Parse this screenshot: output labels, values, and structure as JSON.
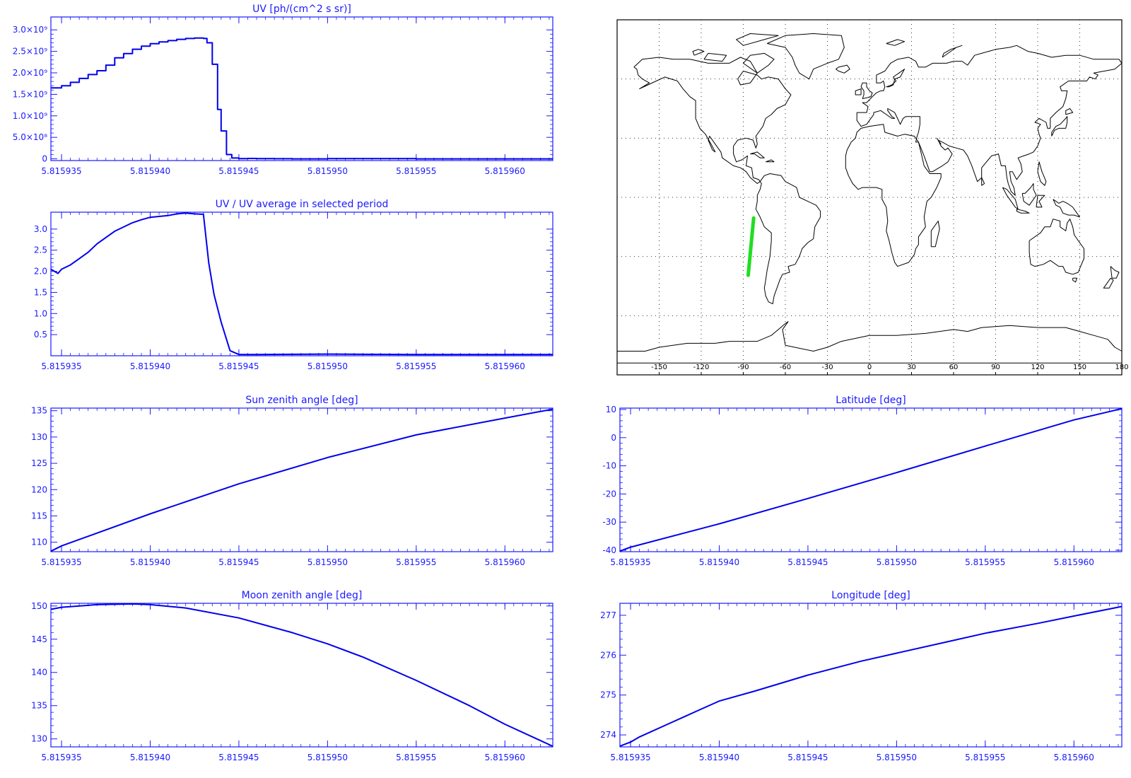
{
  "colors": {
    "axis": "#1a1aff",
    "line": "#0000ee",
    "track": "#22dd22",
    "coast": "#000000",
    "grid": "#333333",
    "map_frame": "#000000"
  },
  "x_ticks": [
    "5.815935",
    "5.815940",
    "5.815945",
    "5.815950",
    "5.815955",
    "5.815960"
  ],
  "map": {
    "lon_ticks": [
      "-150",
      "-120",
      "-90",
      "-60",
      "-30",
      "0",
      "30",
      "60",
      "90",
      "120",
      "150",
      "180"
    ],
    "track": [
      [
        -82.6,
        -10.5
      ],
      [
        -86.5,
        -39.5
      ]
    ]
  },
  "chart_data": [
    {
      "id": "uv",
      "type": "line",
      "step": true,
      "title": "UV [ph/(cm^2 s sr)]",
      "xlabel": "",
      "ylabel": "",
      "xlim": [
        5.8159344,
        5.8159627
      ],
      "ylim": [
        -40000000,
        3300000000
      ],
      "y_ticks": [
        0,
        500000000,
        1000000000,
        1500000000,
        2000000000,
        2500000000,
        3000000000
      ],
      "y_tick_labels": [
        "0",
        "5.0×10⁸",
        "1.0×10⁹",
        "1.5×10⁹",
        "2.0×10⁹",
        "2.5×10⁹",
        "3.0×10⁹"
      ],
      "series": [
        {
          "x": [
            5.8159344,
            5.815935,
            5.8159355,
            5.815936,
            5.8159365,
            5.815937,
            5.8159375,
            5.815938,
            5.8159385,
            5.815939,
            5.8159395,
            5.81594,
            5.8159405,
            5.815941,
            5.8159415,
            5.815942,
            5.8159425,
            5.815943,
            5.8159432,
            5.8159435,
            5.8159438,
            5.815944,
            5.8159443,
            5.8159446,
            5.815945,
            5.8159455,
            5.815946,
            5.815947,
            5.815948,
            5.81595,
            5.815955,
            5.81596,
            5.8159627
          ],
          "y": [
            1650000000,
            1700000000,
            1780000000,
            1870000000,
            1960000000,
            2050000000,
            2180000000,
            2350000000,
            2450000000,
            2550000000,
            2620000000,
            2680000000,
            2720000000,
            2750000000,
            2780000000,
            2800000000,
            2810000000,
            2800000000,
            2700000000,
            2200000000,
            1150000000,
            650000000,
            100000000,
            20000000,
            5000000,
            10000000,
            5000000,
            2000000,
            0,
            5000000,
            0,
            0,
            0
          ]
        }
      ]
    },
    {
      "id": "uv-ratio",
      "type": "line",
      "title": "UV / UV average in selected period",
      "xlabel": "",
      "ylabel": "",
      "xlim": [
        5.8159344,
        5.8159627
      ],
      "ylim": [
        0,
        3.4
      ],
      "y_ticks": [
        0.5,
        1.0,
        1.5,
        2.0,
        2.5,
        3.0
      ],
      "y_tick_labels": [
        "0.5",
        "1.0",
        "1.5",
        "2.0",
        "2.5",
        "3.0"
      ],
      "series": [
        {
          "x": [
            5.8159344,
            5.8159348,
            5.815935,
            5.8159355,
            5.815936,
            5.8159365,
            5.815937,
            5.8159375,
            5.815938,
            5.8159385,
            5.815939,
            5.8159395,
            5.81594,
            5.8159405,
            5.815941,
            5.8159415,
            5.815942,
            5.8159425,
            5.815943,
            5.8159433,
            5.8159436,
            5.815944,
            5.8159445,
            5.815945,
            5.815946,
            5.81595,
            5.815955,
            5.81596,
            5.8159627
          ],
          "y": [
            2.05,
            1.95,
            2.05,
            2.15,
            2.3,
            2.45,
            2.65,
            2.8,
            2.95,
            3.05,
            3.15,
            3.22,
            3.28,
            3.3,
            3.32,
            3.36,
            3.38,
            3.36,
            3.35,
            2.2,
            1.45,
            0.8,
            0.12,
            0.03,
            0.03,
            0.04,
            0.03,
            0.03,
            0.03
          ]
        }
      ]
    },
    {
      "id": "sun-zenith",
      "type": "line",
      "title": "Sun zenith angle [deg]",
      "xlabel": "",
      "ylabel": "",
      "xlim": [
        5.8159344,
        5.8159627
      ],
      "ylim": [
        108.2,
        135.5
      ],
      "y_ticks": [
        110,
        115,
        120,
        125,
        130,
        135
      ],
      "y_tick_labels": [
        "110",
        "115",
        "120",
        "125",
        "130",
        "135"
      ],
      "series": [
        {
          "x": [
            5.8159344,
            5.815935,
            5.81594,
            5.815945,
            5.81595,
            5.815955,
            5.81596,
            5.8159627
          ],
          "y": [
            108.3,
            109.3,
            115.4,
            121.1,
            126.1,
            130.4,
            133.6,
            135.3
          ]
        }
      ]
    },
    {
      "id": "latitude",
      "type": "line",
      "title": "Latitude [deg]",
      "xlabel": "",
      "ylabel": "",
      "xlim": [
        5.8159344,
        5.8159627
      ],
      "ylim": [
        -40.5,
        10.5
      ],
      "y_ticks": [
        -40,
        -30,
        -20,
        -10,
        0,
        10
      ],
      "y_tick_labels": [
        "-40",
        "-30",
        "-20",
        "-10",
        "0",
        "10"
      ],
      "series": [
        {
          "x": [
            5.8159344,
            5.815935,
            5.81594,
            5.815945,
            5.81595,
            5.815955,
            5.81596,
            5.8159627
          ],
          "y": [
            -40.3,
            -38.9,
            -30.6,
            -21.6,
            -12.4,
            -3.0,
            6.3,
            10.3
          ]
        }
      ]
    },
    {
      "id": "moon-zenith",
      "type": "line",
      "title": "Moon zenith angle [deg]",
      "xlabel": "",
      "ylabel": "",
      "xlim": [
        5.8159344,
        5.8159627
      ],
      "ylim": [
        128.8,
        150.4
      ],
      "y_ticks": [
        130,
        135,
        140,
        145,
        150
      ],
      "y_tick_labels": [
        "130",
        "135",
        "140",
        "145",
        "150"
      ],
      "series": [
        {
          "x": [
            5.8159344,
            5.815935,
            5.815937,
            5.815939,
            5.81594,
            5.815942,
            5.815945,
            5.815948,
            5.81595,
            5.815952,
            5.815955,
            5.815958,
            5.81596,
            5.8159627
          ],
          "y": [
            149.5,
            149.8,
            150.2,
            150.3,
            150.2,
            149.7,
            148.2,
            146.0,
            144.3,
            142.3,
            138.8,
            135.0,
            132.2,
            128.9
          ]
        }
      ]
    },
    {
      "id": "longitude",
      "type": "line",
      "title": "Longitude [deg]",
      "xlabel": "",
      "ylabel": "",
      "xlim": [
        5.8159344,
        5.8159627
      ],
      "ylim": [
        273.7,
        277.3
      ],
      "y_ticks": [
        274,
        275,
        276,
        277
      ],
      "y_tick_labels": [
        "274",
        "275",
        "276",
        "277"
      ],
      "series": [
        {
          "x": [
            5.8159344,
            5.815935,
            5.8159355,
            5.815936,
            5.815937,
            5.815938,
            5.815939,
            5.81594,
            5.815942,
            5.815945,
            5.815948,
            5.81595,
            5.815953,
            5.815955,
            5.815958,
            5.81596,
            5.8159627
          ],
          "y": [
            273.72,
            273.82,
            273.95,
            274.05,
            274.25,
            274.45,
            274.65,
            274.85,
            275.1,
            275.5,
            275.85,
            276.05,
            276.35,
            276.55,
            276.8,
            276.98,
            277.22
          ]
        }
      ]
    }
  ]
}
